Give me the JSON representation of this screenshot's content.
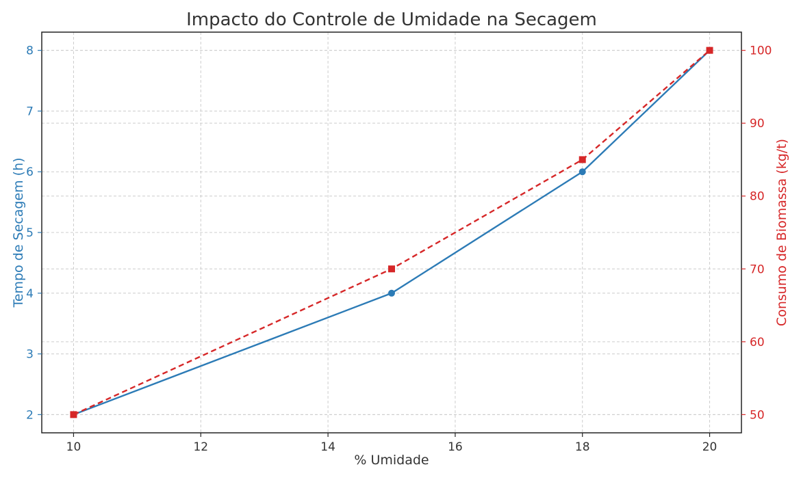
{
  "chart_data": {
    "type": "line",
    "title": "Impacto do Controle de Umidade na Secagem",
    "xlabel": "% Umidade",
    "ylabel_left": "Tempo de Secagem (h)",
    "ylabel_right": "Consumo de Biomassa (kg/t)",
    "x": [
      10,
      15,
      18,
      20
    ],
    "xlim": [
      9.5,
      20.5
    ],
    "xticks": [
      "10",
      "12",
      "14",
      "16",
      "18",
      "20"
    ],
    "ylim_left": [
      1.7,
      8.3
    ],
    "yticks_left": [
      "2",
      "3",
      "4",
      "5",
      "6",
      "7",
      "8"
    ],
    "ylim_right": [
      47.5,
      102.5
    ],
    "yticks_right": [
      "50",
      "60",
      "70",
      "80",
      "90",
      "100"
    ],
    "grid": true,
    "series": [
      {
        "axis": "left",
        "values": [
          2,
          4,
          6,
          8
        ],
        "color": "#2c7bb6",
        "line_style": "solid",
        "marker": "circle"
      },
      {
        "axis": "right",
        "values": [
          50,
          70,
          85,
          100
        ],
        "color": "#d62728",
        "line_style": "dashed",
        "marker": "square"
      }
    ],
    "colors": {
      "left_axis": "#2c7bb6",
      "right_axis": "#d62728",
      "text": "#333333"
    }
  }
}
